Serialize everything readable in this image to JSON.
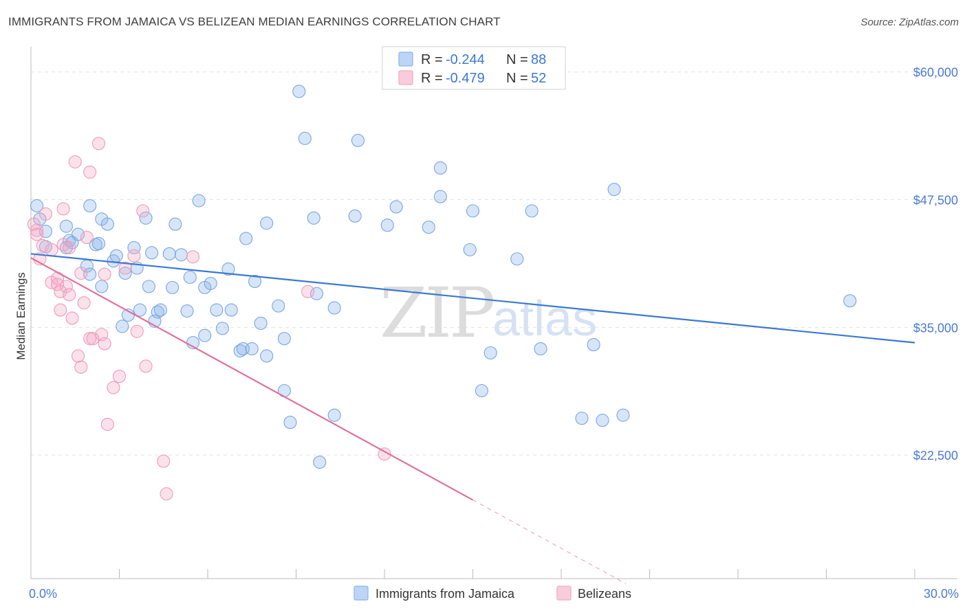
{
  "title": "IMMIGRANTS FROM JAMAICA VS BELIZEAN MEDIAN EARNINGS CORRELATION CHART",
  "source": "Source: ZipAtlas.com",
  "watermark": {
    "zip": "ZIP",
    "atlas": "atlas"
  },
  "chart_data": {
    "type": "scatter",
    "ylabel": "Median Earnings",
    "xlim": [
      0,
      30
    ],
    "ylim": [
      10400,
      62000
    ],
    "x_tick_labels": {
      "min": "0.0%",
      "max": "30.0%"
    },
    "y_ticks": [
      {
        "value": 22500,
        "label": "$22,500"
      },
      {
        "value": 35000,
        "label": "$35,000"
      },
      {
        "value": 47500,
        "label": "$47,500"
      },
      {
        "value": 60000,
        "label": "$60,000"
      }
    ],
    "colors": {
      "blue": "#8ab4ea",
      "blue_line": "#3a78d4",
      "pink": "#f3a8c2",
      "pink_line": "#e0709a",
      "text_blue": "#4a7bd0"
    },
    "legend_stats": [
      {
        "r_label": "R = ",
        "r_value": "-0.244",
        "n_label": "N = ",
        "n_value": "88"
      },
      {
        "r_label": "R = ",
        "r_value": "-0.479",
        "n_label": "N = ",
        "n_value": "52"
      }
    ],
    "series": [
      {
        "name": "Immigrants from Jamaica",
        "color": "#8ab4ea",
        "trend": {
          "x0": 0,
          "y0": 42200,
          "x1": 30,
          "y1": 33500
        },
        "points": [
          [
            0.2,
            46900
          ],
          [
            0.3,
            45600
          ],
          [
            0.5,
            44400
          ],
          [
            0.5,
            42900
          ],
          [
            1.2,
            42800
          ],
          [
            1.2,
            44900
          ],
          [
            1.3,
            43500
          ],
          [
            1.4,
            43300
          ],
          [
            1.6,
            44100
          ],
          [
            1.9,
            41000
          ],
          [
            2.0,
            46900
          ],
          [
            2.0,
            40200
          ],
          [
            2.2,
            43100
          ],
          [
            2.3,
            43200
          ],
          [
            2.4,
            39000
          ],
          [
            2.4,
            45600
          ],
          [
            2.6,
            45100
          ],
          [
            2.8,
            41500
          ],
          [
            2.9,
            42000
          ],
          [
            3.1,
            35100
          ],
          [
            3.2,
            40300
          ],
          [
            3.3,
            36200
          ],
          [
            3.5,
            42800
          ],
          [
            3.6,
            40800
          ],
          [
            3.7,
            36700
          ],
          [
            3.9,
            45700
          ],
          [
            4.0,
            39000
          ],
          [
            4.1,
            42300
          ],
          [
            4.2,
            35600
          ],
          [
            4.3,
            36500
          ],
          [
            4.4,
            36700
          ],
          [
            4.7,
            42200
          ],
          [
            4.8,
            38900
          ],
          [
            4.9,
            45100
          ],
          [
            5.1,
            42100
          ],
          [
            5.3,
            36600
          ],
          [
            5.4,
            39900
          ],
          [
            5.5,
            33500
          ],
          [
            5.7,
            47400
          ],
          [
            5.9,
            34200
          ],
          [
            5.9,
            38900
          ],
          [
            6.1,
            39300
          ],
          [
            6.3,
            36700
          ],
          [
            6.5,
            34900
          ],
          [
            6.7,
            40700
          ],
          [
            6.8,
            36700
          ],
          [
            7.1,
            32700
          ],
          [
            7.2,
            32900
          ],
          [
            7.3,
            43700
          ],
          [
            7.5,
            32900
          ],
          [
            7.6,
            39500
          ],
          [
            7.8,
            35400
          ],
          [
            8.0,
            32200
          ],
          [
            8.0,
            45200
          ],
          [
            8.4,
            37100
          ],
          [
            8.6,
            28800
          ],
          [
            8.6,
            33900
          ],
          [
            8.8,
            25700
          ],
          [
            9.1,
            58100
          ],
          [
            9.3,
            53500
          ],
          [
            9.6,
            45700
          ],
          [
            9.7,
            38300
          ],
          [
            9.8,
            21800
          ],
          [
            10.3,
            26400
          ],
          [
            10.3,
            36900
          ],
          [
            11.0,
            45900
          ],
          [
            11.1,
            53300
          ],
          [
            12.1,
            45000
          ],
          [
            12.4,
            46800
          ],
          [
            13.5,
            44800
          ],
          [
            13.9,
            50600
          ],
          [
            13.9,
            47800
          ],
          [
            14.9,
            42600
          ],
          [
            15.0,
            46400
          ],
          [
            15.3,
            28800
          ],
          [
            15.6,
            32500
          ],
          [
            16.5,
            41700
          ],
          [
            17.0,
            46400
          ],
          [
            17.3,
            32900
          ],
          [
            18.7,
            26100
          ],
          [
            19.1,
            33300
          ],
          [
            19.4,
            25900
          ],
          [
            19.8,
            48500
          ],
          [
            20.1,
            26400
          ],
          [
            27.8,
            37600
          ]
        ]
      },
      {
        "name": "Belizeans",
        "color": "#f3a8c2",
        "trend": {
          "x0": 0,
          "y0": 41800,
          "x1": 15.0,
          "y1": 18100
        },
        "trend_ext": {
          "x0": 15.0,
          "y0": 18100,
          "x1": 20.2,
          "y1": 9900
        },
        "points": [
          [
            0.1,
            45100
          ],
          [
            0.2,
            44500
          ],
          [
            0.2,
            44100
          ],
          [
            0.3,
            41700
          ],
          [
            0.4,
            43000
          ],
          [
            0.5,
            46100
          ],
          [
            0.7,
            42600
          ],
          [
            0.7,
            39400
          ],
          [
            0.9,
            39800
          ],
          [
            0.9,
            39200
          ],
          [
            1.0,
            38500
          ],
          [
            1.0,
            36700
          ],
          [
            1.1,
            46600
          ],
          [
            1.1,
            43100
          ],
          [
            1.2,
            39000
          ],
          [
            1.3,
            38200
          ],
          [
            1.3,
            42800
          ],
          [
            1.4,
            35900
          ],
          [
            1.5,
            51200
          ],
          [
            1.6,
            32200
          ],
          [
            1.7,
            31100
          ],
          [
            1.7,
            40300
          ],
          [
            1.8,
            37400
          ],
          [
            1.9,
            43800
          ],
          [
            2.0,
            50200
          ],
          [
            2.0,
            33900
          ],
          [
            2.1,
            33900
          ],
          [
            2.3,
            53000
          ],
          [
            2.4,
            34300
          ],
          [
            2.5,
            40200
          ],
          [
            2.5,
            33400
          ],
          [
            2.6,
            25500
          ],
          [
            2.8,
            29100
          ],
          [
            3.0,
            30200
          ],
          [
            3.2,
            40800
          ],
          [
            3.5,
            42000
          ],
          [
            3.6,
            34600
          ],
          [
            3.8,
            46400
          ],
          [
            3.9,
            31200
          ],
          [
            4.5,
            21900
          ],
          [
            4.6,
            18700
          ],
          [
            5.5,
            41900
          ],
          [
            9.4,
            38500
          ],
          [
            12.0,
            22600
          ]
        ]
      }
    ]
  }
}
